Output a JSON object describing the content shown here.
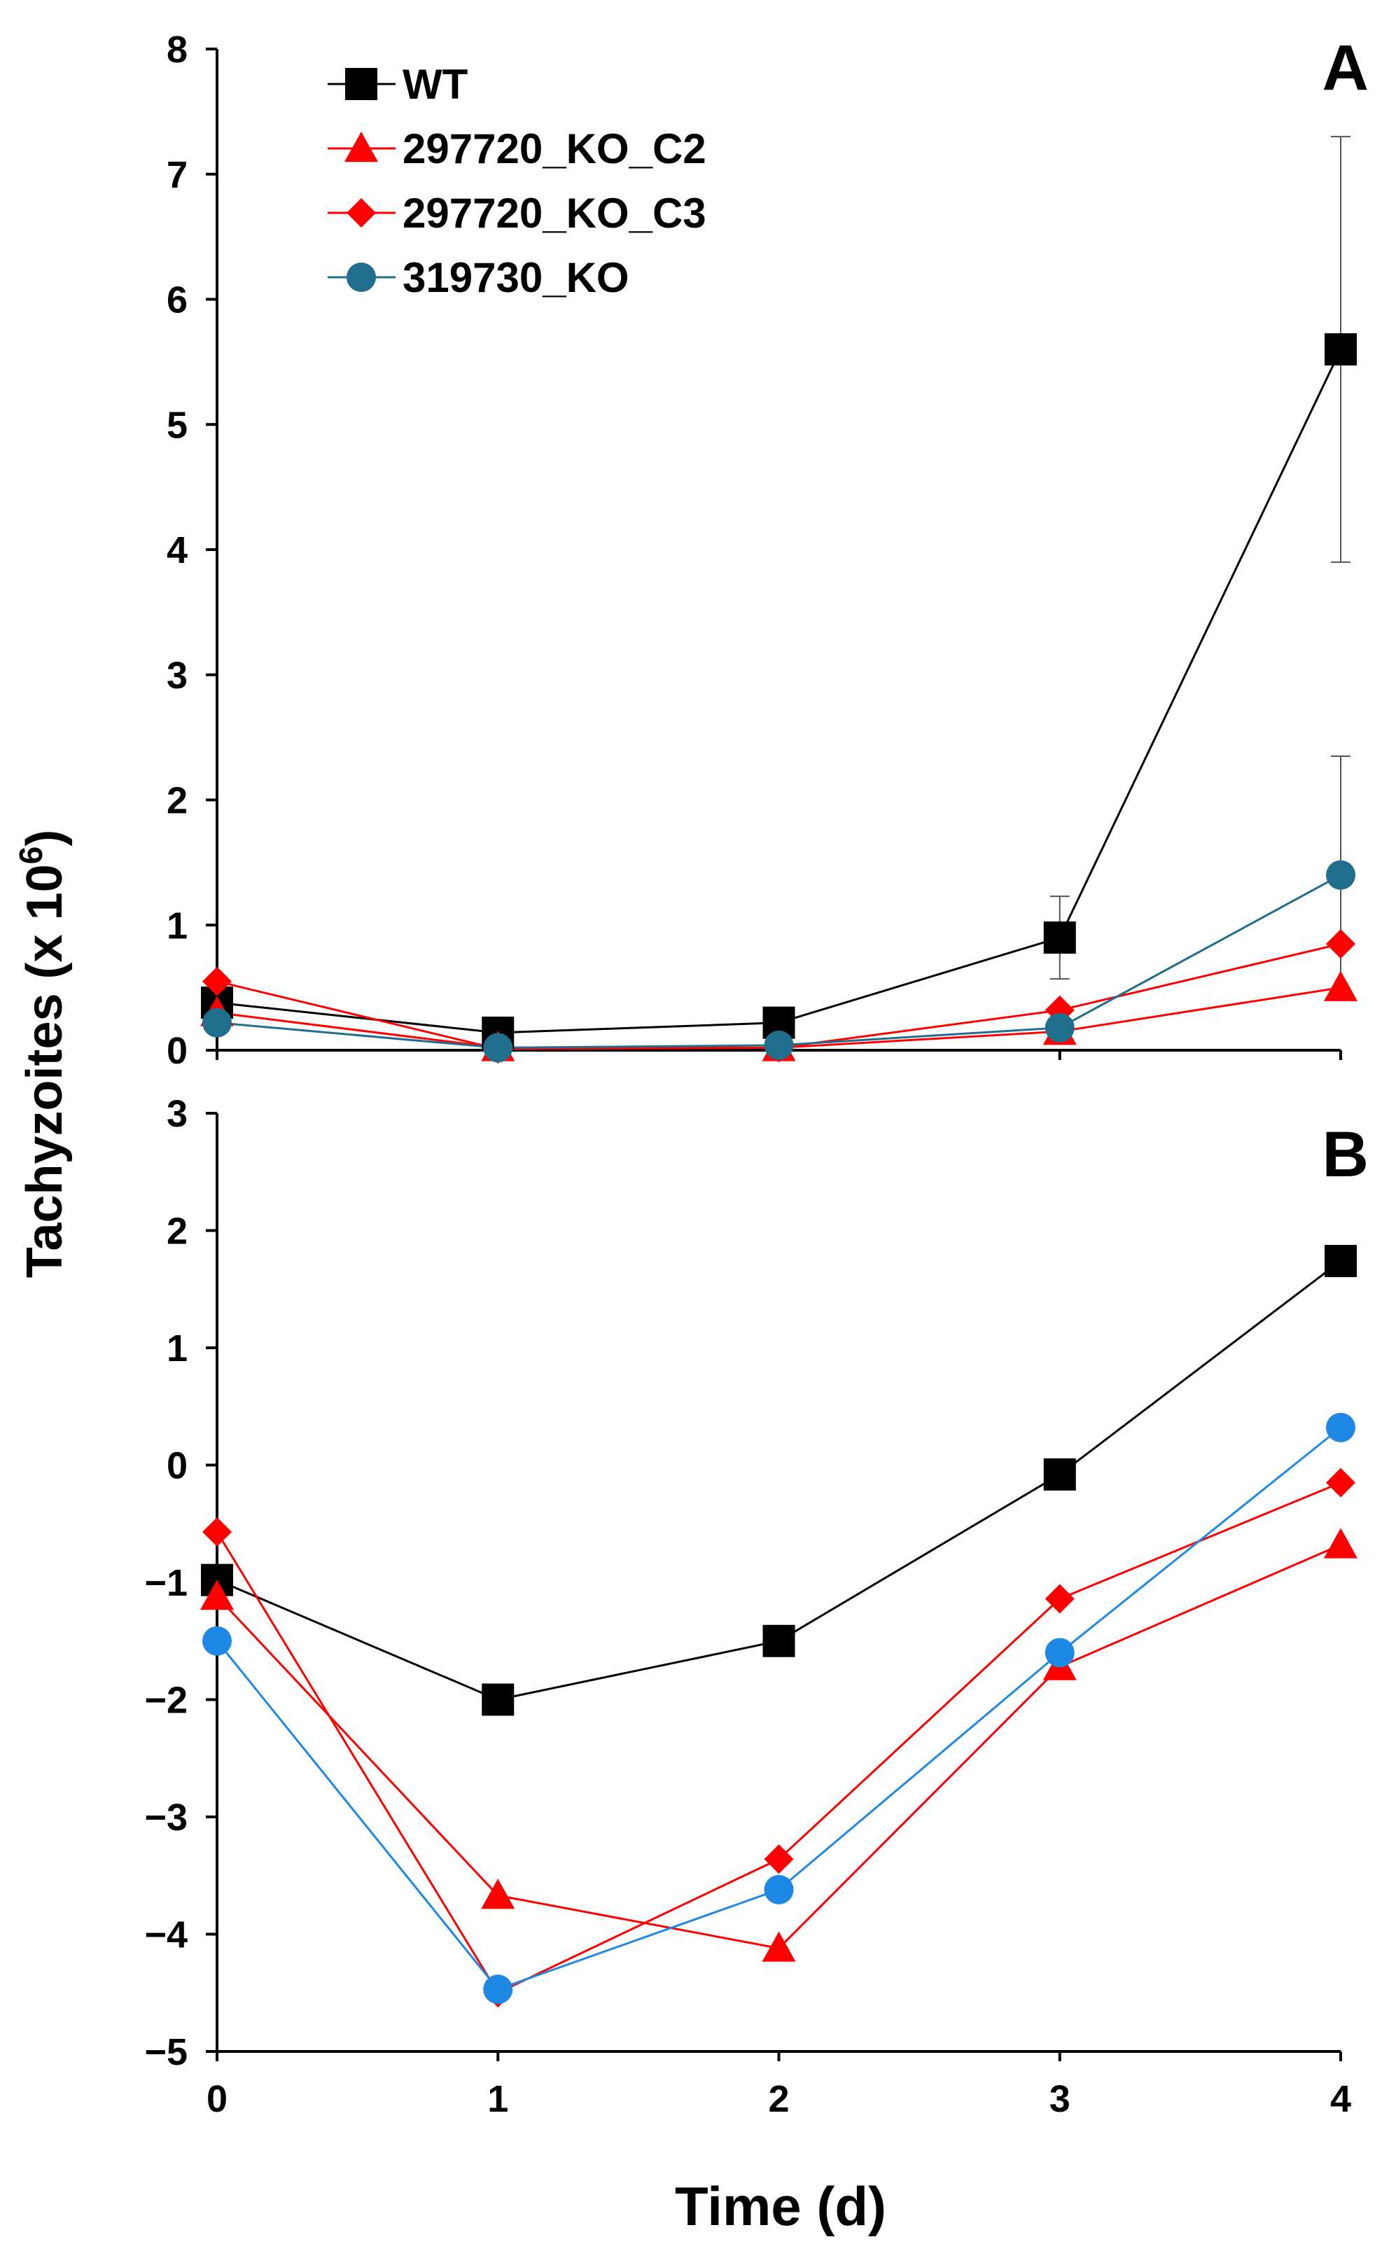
{
  "chart_data": [
    {
      "panel": "A",
      "type": "line",
      "ylim": [
        0,
        8
      ],
      "yticks": [
        0,
        1,
        2,
        3,
        4,
        5,
        6,
        7,
        8
      ],
      "x": [
        0,
        1,
        2,
        3,
        4
      ],
      "xticks": [],
      "legend_position": "top-left",
      "series": [
        {
          "name": "WT",
          "color": "#000000",
          "marker": "square",
          "values": [
            0.38,
            0.14,
            0.22,
            0.9,
            5.6
          ],
          "error": [
            0.06,
            0.03,
            0.03,
            0.33,
            1.7
          ]
        },
        {
          "name": "297720_KO_C2",
          "color": "#ff0000",
          "marker": "triangle",
          "values": [
            0.3,
            0.02,
            0.02,
            0.15,
            0.5
          ],
          "error": [
            0,
            0,
            0,
            0,
            0
          ]
        },
        {
          "name": "297720_KO_C3",
          "color": "#ff0000",
          "marker": "diamond",
          "values": [
            0.55,
            0.01,
            0.02,
            0.32,
            0.85
          ],
          "error": [
            0,
            0,
            0,
            0,
            0
          ]
        },
        {
          "name": "319730_KO",
          "color": "#1f6e8c",
          "marker": "circle",
          "values": [
            0.22,
            0.02,
            0.04,
            0.18,
            1.4
          ],
          "error": [
            0,
            0,
            0,
            0,
            0.95
          ]
        }
      ]
    },
    {
      "panel": "B",
      "type": "line",
      "ylim": [
        -5,
        3
      ],
      "yticks": [
        -5,
        -4,
        -3,
        -2,
        -1,
        0,
        1,
        2,
        3
      ],
      "x": [
        0,
        1,
        2,
        3,
        4
      ],
      "xticks": [
        0,
        1,
        2,
        3,
        4
      ],
      "series": [
        {
          "name": "WT",
          "color": "#000000",
          "marker": "square",
          "values": [
            -0.98,
            -2.0,
            -1.5,
            -0.08,
            1.74
          ]
        },
        {
          "name": "297720_KO_C2",
          "color": "#ff0000",
          "marker": "triangle",
          "values": [
            -1.12,
            -3.67,
            -4.12,
            -1.72,
            -0.68
          ]
        },
        {
          "name": "297720_KO_C3",
          "color": "#ff0000",
          "marker": "diamond",
          "values": [
            -0.57,
            -4.5,
            -3.36,
            -1.14,
            -0.15
          ]
        },
        {
          "name": "319730_KO",
          "color": "#1e88e5",
          "marker": "circle",
          "values": [
            -1.5,
            -4.47,
            -3.62,
            -1.6,
            0.32
          ]
        }
      ]
    }
  ],
  "xlabel": "Time (d)",
  "ylabel_main": "Tachyzoites (x 10",
  "ylabel_sup": "6",
  "ylabel_close": ")",
  "legend": [
    "WT",
    "297720_KO_C2",
    "297720_KO_C3",
    "319730_KO"
  ]
}
